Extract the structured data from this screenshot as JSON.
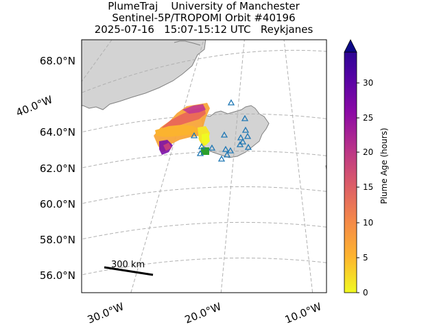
{
  "header": {
    "line1": "PlumeTraj    University of Manchester",
    "line2": "Sentinel-5P/TROPOMI Orbit #40196",
    "line3": "2025-07-16   15:07-15:12 UTC   Reykjanes"
  },
  "map": {
    "lat_labels": [
      "68.0°N",
      "64.0°N",
      "62.0°N",
      "60.0°N",
      "58.0°N",
      "56.0°N"
    ],
    "lon_labels": [
      "40.0°W",
      "30.0°W",
      "20.0°W",
      "10.0°W"
    ],
    "scale_bar_label": "300 km",
    "land_color": "#d3d3d3",
    "coast_color": "#808080",
    "grid_color": "#b0b0b0",
    "volcano_marker_color": "#1f77b4",
    "volcano_marker_icon": "triangle-outline",
    "source_marker_color": "#2ca02c"
  },
  "colorbar": {
    "label": "Plume Age (hours)",
    "ticks": [
      "0",
      "5",
      "10",
      "15",
      "20",
      "25",
      "30"
    ],
    "range": [
      0,
      34
    ],
    "colormap": "plasma-reversed",
    "extend": "max"
  }
}
